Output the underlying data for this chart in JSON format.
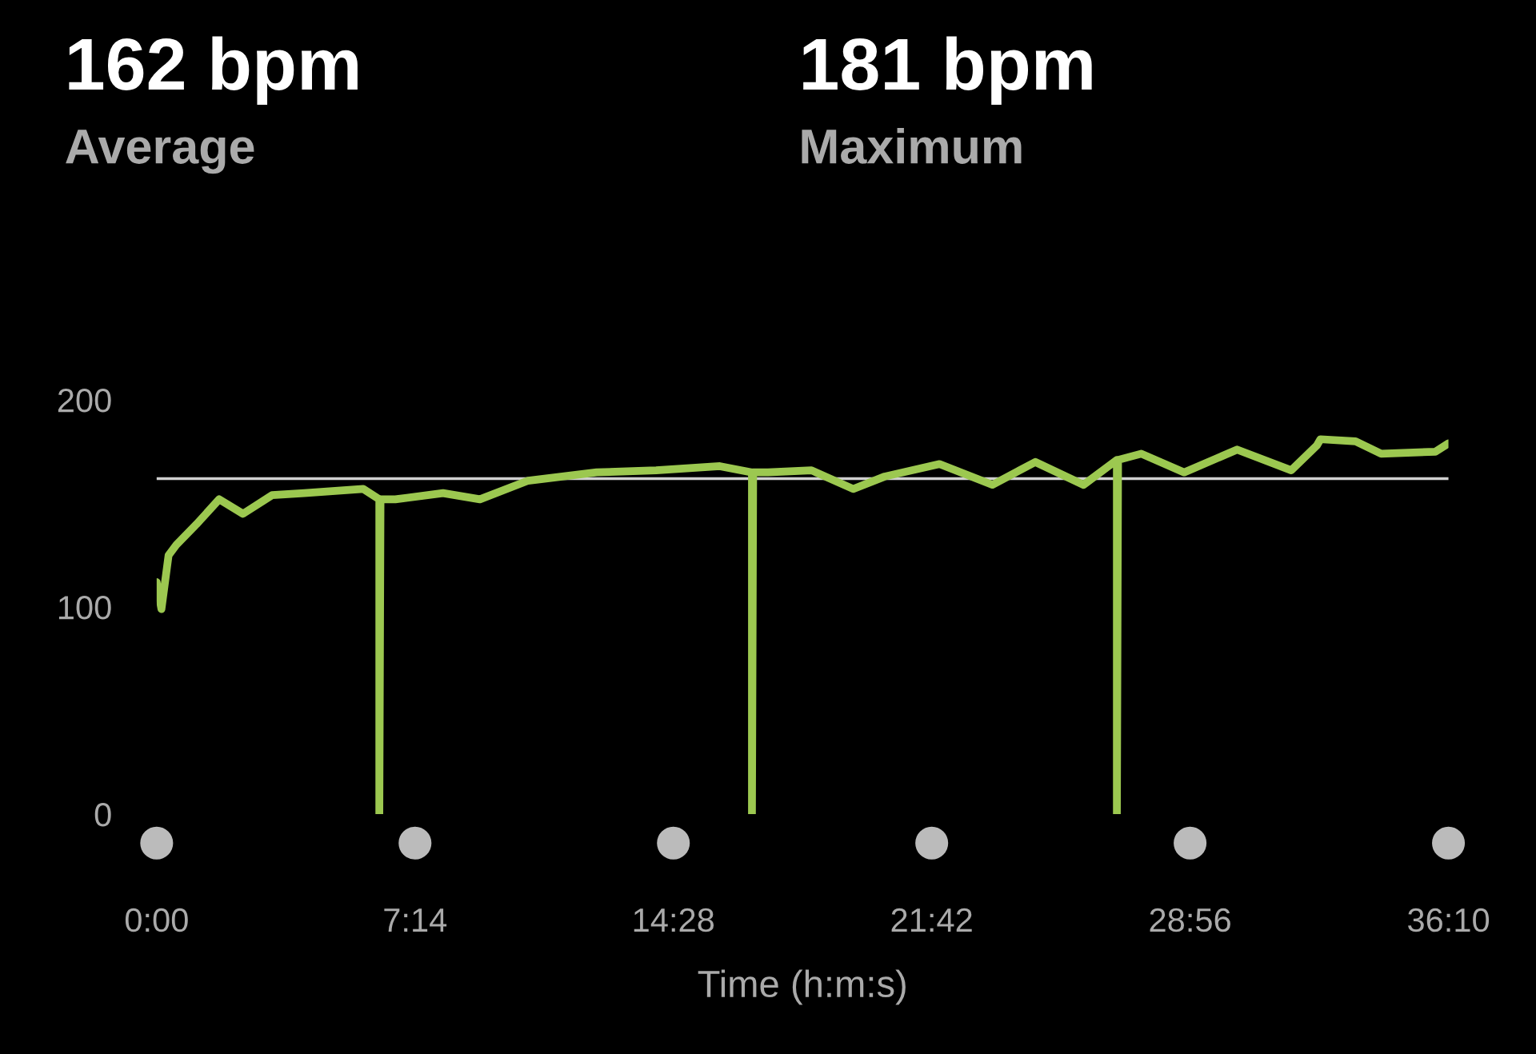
{
  "chart_data": {
    "type": "line",
    "annotations": [
      "162 bpm",
      "Average",
      "181 bpm",
      "Maximum"
    ],
    "xlabel": "Time (h:m:s)",
    "xlim": [
      0,
      2170
    ],
    "xticks": [
      {
        "value": 0,
        "label": "0:00"
      },
      {
        "value": 434,
        "label": "7:14"
      },
      {
        "value": 868,
        "label": "14:28"
      },
      {
        "value": 1302,
        "label": "21:42"
      },
      {
        "value": 1736,
        "label": "28:56"
      },
      {
        "value": 2170,
        "label": "36:10"
      }
    ],
    "ylim": [
      0,
      200
    ],
    "yticks": [
      0,
      100,
      200
    ],
    "grid": false,
    "ref_lines": [
      {
        "axis": "y",
        "value": 162,
        "label": null,
        "color": "#d0d0d0"
      }
    ],
    "series": [
      {
        "color": "#9cc850",
        "x": [
          0,
          8,
          20,
          33,
          67,
          105,
          145,
          194,
          248,
          347,
          374,
          374,
          376,
          401,
          481,
          543,
          624,
          739,
          839,
          946,
          1000,
          1000,
          1002,
          1027,
          1100,
          1170,
          1223,
          1315,
          1404,
          1476,
          1557,
          1613,
          1613,
          1615,
          1654,
          1726,
          1815,
          1906,
          1949,
          1955,
          2014,
          2057,
          2148,
          2170
        ],
        "values": [
          112,
          99,
          125,
          130,
          140,
          152,
          145,
          154,
          155,
          157,
          152,
          0,
          152,
          152,
          155,
          152,
          161,
          165,
          166,
          168,
          165,
          0,
          165,
          165,
          166,
          157,
          163,
          169,
          159,
          170,
          159,
          171,
          0,
          171,
          174,
          165,
          176,
          166,
          178,
          181,
          180,
          174,
          175,
          179
        ]
      }
    ]
  }
}
